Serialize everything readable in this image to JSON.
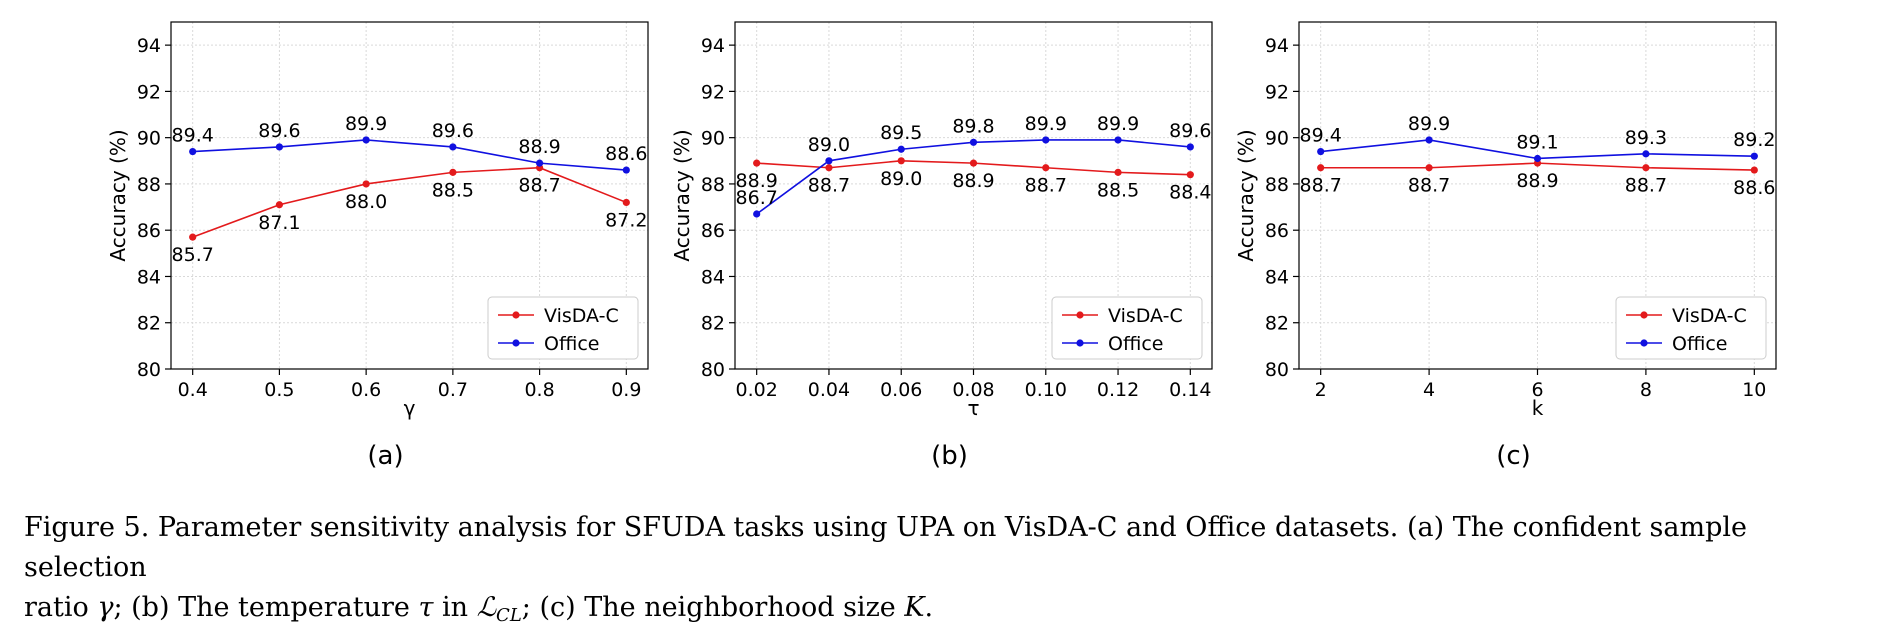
{
  "chart_data": [
    {
      "type": "line",
      "panel_label": "(a)",
      "xlabel": "γ",
      "ylabel": "Accuracy (%)",
      "x": [
        0.4,
        0.5,
        0.6,
        0.7,
        0.8,
        0.9
      ],
      "x_tick_labels": [
        "0.4",
        "0.5",
        "0.6",
        "0.7",
        "0.8",
        "0.9"
      ],
      "xlim": [
        0.375,
        0.925
      ],
      "ylim": [
        80,
        95
      ],
      "y_ticks": [
        80,
        82,
        84,
        86,
        88,
        90,
        92,
        94
      ],
      "grid": true,
      "legend_position": "lower-right",
      "series": [
        {
          "name": "VisDA-C",
          "color": "#e31a1c",
          "values": [
            85.7,
            87.1,
            88.0,
            88.5,
            88.7,
            87.2
          ],
          "labels": [
            "85.7",
            "87.1",
            "88.0",
            "88.5",
            "88.7",
            "87.2"
          ],
          "label_side": "below"
        },
        {
          "name": "Office",
          "color": "#1010e0",
          "values": [
            89.4,
            89.6,
            89.9,
            89.6,
            88.9,
            88.6
          ],
          "labels": [
            "89.4",
            "89.6",
            "89.9",
            "89.6",
            "88.9",
            "88.6"
          ],
          "label_side": "above"
        }
      ]
    },
    {
      "type": "line",
      "panel_label": "(b)",
      "xlabel": "τ",
      "ylabel": "Accuracy (%)",
      "x": [
        0.02,
        0.04,
        0.06,
        0.08,
        0.1,
        0.12,
        0.14
      ],
      "x_tick_labels": [
        "0.02",
        "0.04",
        "0.06",
        "0.08",
        "0.10",
        "0.12",
        "0.14"
      ],
      "xlim": [
        0.014,
        0.146
      ],
      "ylim": [
        80,
        95
      ],
      "y_ticks": [
        80,
        82,
        84,
        86,
        88,
        90,
        92,
        94
      ],
      "grid": true,
      "legend_position": "lower-right",
      "series": [
        {
          "name": "VisDA-C",
          "color": "#e31a1c",
          "values": [
            88.9,
            88.7,
            89.0,
            88.9,
            88.7,
            88.5,
            88.4
          ],
          "labels": [
            "88.9",
            "88.7",
            "89.0",
            "88.9",
            "88.7",
            "88.5",
            "88.4"
          ],
          "label_side": "below"
        },
        {
          "name": "Office",
          "color": "#1010e0",
          "values": [
            86.7,
            89.0,
            89.5,
            89.8,
            89.9,
            89.9,
            89.6
          ],
          "labels": [
            "86.7",
            "89.0",
            "89.5",
            "89.8",
            "89.9",
            "89.9",
            "89.6"
          ],
          "label_side": "above"
        }
      ]
    },
    {
      "type": "line",
      "panel_label": "(c)",
      "xlabel": "k",
      "ylabel": "Accuracy (%)",
      "x": [
        2,
        4,
        6,
        8,
        10
      ],
      "x_tick_labels": [
        "2",
        "4",
        "6",
        "8",
        "10"
      ],
      "xlim": [
        1.6,
        10.4
      ],
      "ylim": [
        80,
        95
      ],
      "y_ticks": [
        80,
        82,
        84,
        86,
        88,
        90,
        92,
        94
      ],
      "grid": true,
      "legend_position": "lower-right",
      "series": [
        {
          "name": "VisDA-C",
          "color": "#e31a1c",
          "values": [
            88.7,
            88.7,
            88.9,
            88.7,
            88.6
          ],
          "labels": [
            "88.7",
            "88.7",
            "88.9",
            "88.7",
            "88.6"
          ],
          "label_side": "below"
        },
        {
          "name": "Office",
          "color": "#1010e0",
          "values": [
            89.4,
            89.9,
            89.1,
            89.3,
            89.2
          ],
          "labels": [
            "89.4",
            "89.9",
            "89.1",
            "89.3",
            "89.2"
          ],
          "label_side": "above"
        }
      ]
    }
  ],
  "caption": {
    "line1": "Figure 5. Parameter sensitivity analysis for SFUDA tasks using UPA on VisDA-C and Office datasets. (a) The confident sample selection",
    "line2_pre": "ratio ",
    "sym_gamma": "γ",
    "line2_mid1": "; (b) The temperature ",
    "sym_tau": "τ",
    "line2_mid2": " in ",
    "sym_L": "ℒ",
    "sym_sub": "CL",
    "line2_mid3": "; (c) The neighborhood size ",
    "sym_K": "K",
    "line2_end": "."
  }
}
